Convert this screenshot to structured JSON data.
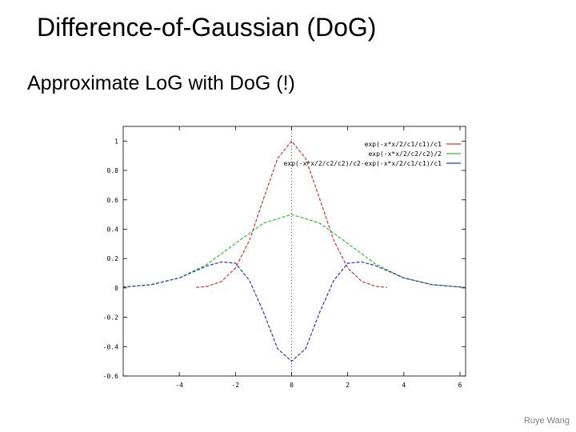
{
  "slide": {
    "title": "Difference-of-Gaussian (DoG)",
    "subtitle": "Approximate LoG with DoG (!)",
    "footer": "Ruye Wang"
  },
  "chart_data": {
    "type": "line",
    "title": "",
    "xlabel": "",
    "ylabel": "",
    "xlim": [
      -6,
      6.2
    ],
    "ylim": [
      -0.6,
      1.1
    ],
    "xticks": [
      -4,
      -2,
      0,
      2,
      4,
      6
    ],
    "yticks": [
      -0.6,
      -0.4,
      -0.2,
      0,
      0.2,
      0.4,
      0.6,
      0.8,
      1
    ],
    "ytick_labels": [
      "-0.6",
      "-0.4",
      "-0.2",
      "0",
      "0.2",
      "0.4",
      "0.6",
      "0.8",
      "1"
    ],
    "xtick_labels": [
      "-4",
      "-2",
      "0",
      "2",
      "4",
      "6"
    ],
    "grid": false,
    "legend_position": "top-right",
    "center_line_x": 0,
    "series": [
      {
        "name": "exp(-x*x/2/c1/c1)/c1",
        "color": "#e03030",
        "x": [
          -3.4,
          -3.0,
          -2.5,
          -2.0,
          -1.5,
          -1.0,
          -0.5,
          0,
          0.5,
          1.0,
          1.5,
          2.0,
          2.5,
          3.0,
          3.4
        ],
        "y": [
          0.003,
          0.011,
          0.044,
          0.135,
          0.325,
          0.607,
          0.882,
          1.0,
          0.882,
          0.607,
          0.325,
          0.135,
          0.044,
          0.011,
          0.003
        ]
      },
      {
        "name": "exp(-x*x/2/c2/c2)/2",
        "color": "#30c030",
        "x": [
          -6.5,
          -6.0,
          -5.0,
          -4.0,
          -3.0,
          -2.0,
          -1.0,
          0,
          1.0,
          2.0,
          3.0,
          4.0,
          5.0,
          6.0,
          6.5
        ],
        "y": [
          0.0025,
          0.006,
          0.022,
          0.068,
          0.162,
          0.303,
          0.441,
          0.5,
          0.441,
          0.303,
          0.162,
          0.068,
          0.022,
          0.006,
          0.0025
        ]
      },
      {
        "name": "exp(-x*x/2/c2/c2)/c2-exp(-x*x/2/c1/c1)/c1",
        "color": "#3030c0",
        "x": [
          -6.5,
          -6.0,
          -5.0,
          -4.0,
          -3.0,
          -2.5,
          -2.0,
          -1.5,
          -1.0,
          -0.5,
          0,
          0.5,
          1.0,
          1.5,
          2.0,
          2.5,
          3.0,
          4.0,
          5.0,
          6.0,
          6.5
        ],
        "y": [
          0.0025,
          0.006,
          0.022,
          0.068,
          0.151,
          0.177,
          0.168,
          0.05,
          -0.166,
          -0.414,
          -0.5,
          -0.414,
          -0.166,
          0.05,
          0.168,
          0.177,
          0.151,
          0.068,
          0.022,
          0.006,
          0.0025
        ]
      }
    ]
  }
}
